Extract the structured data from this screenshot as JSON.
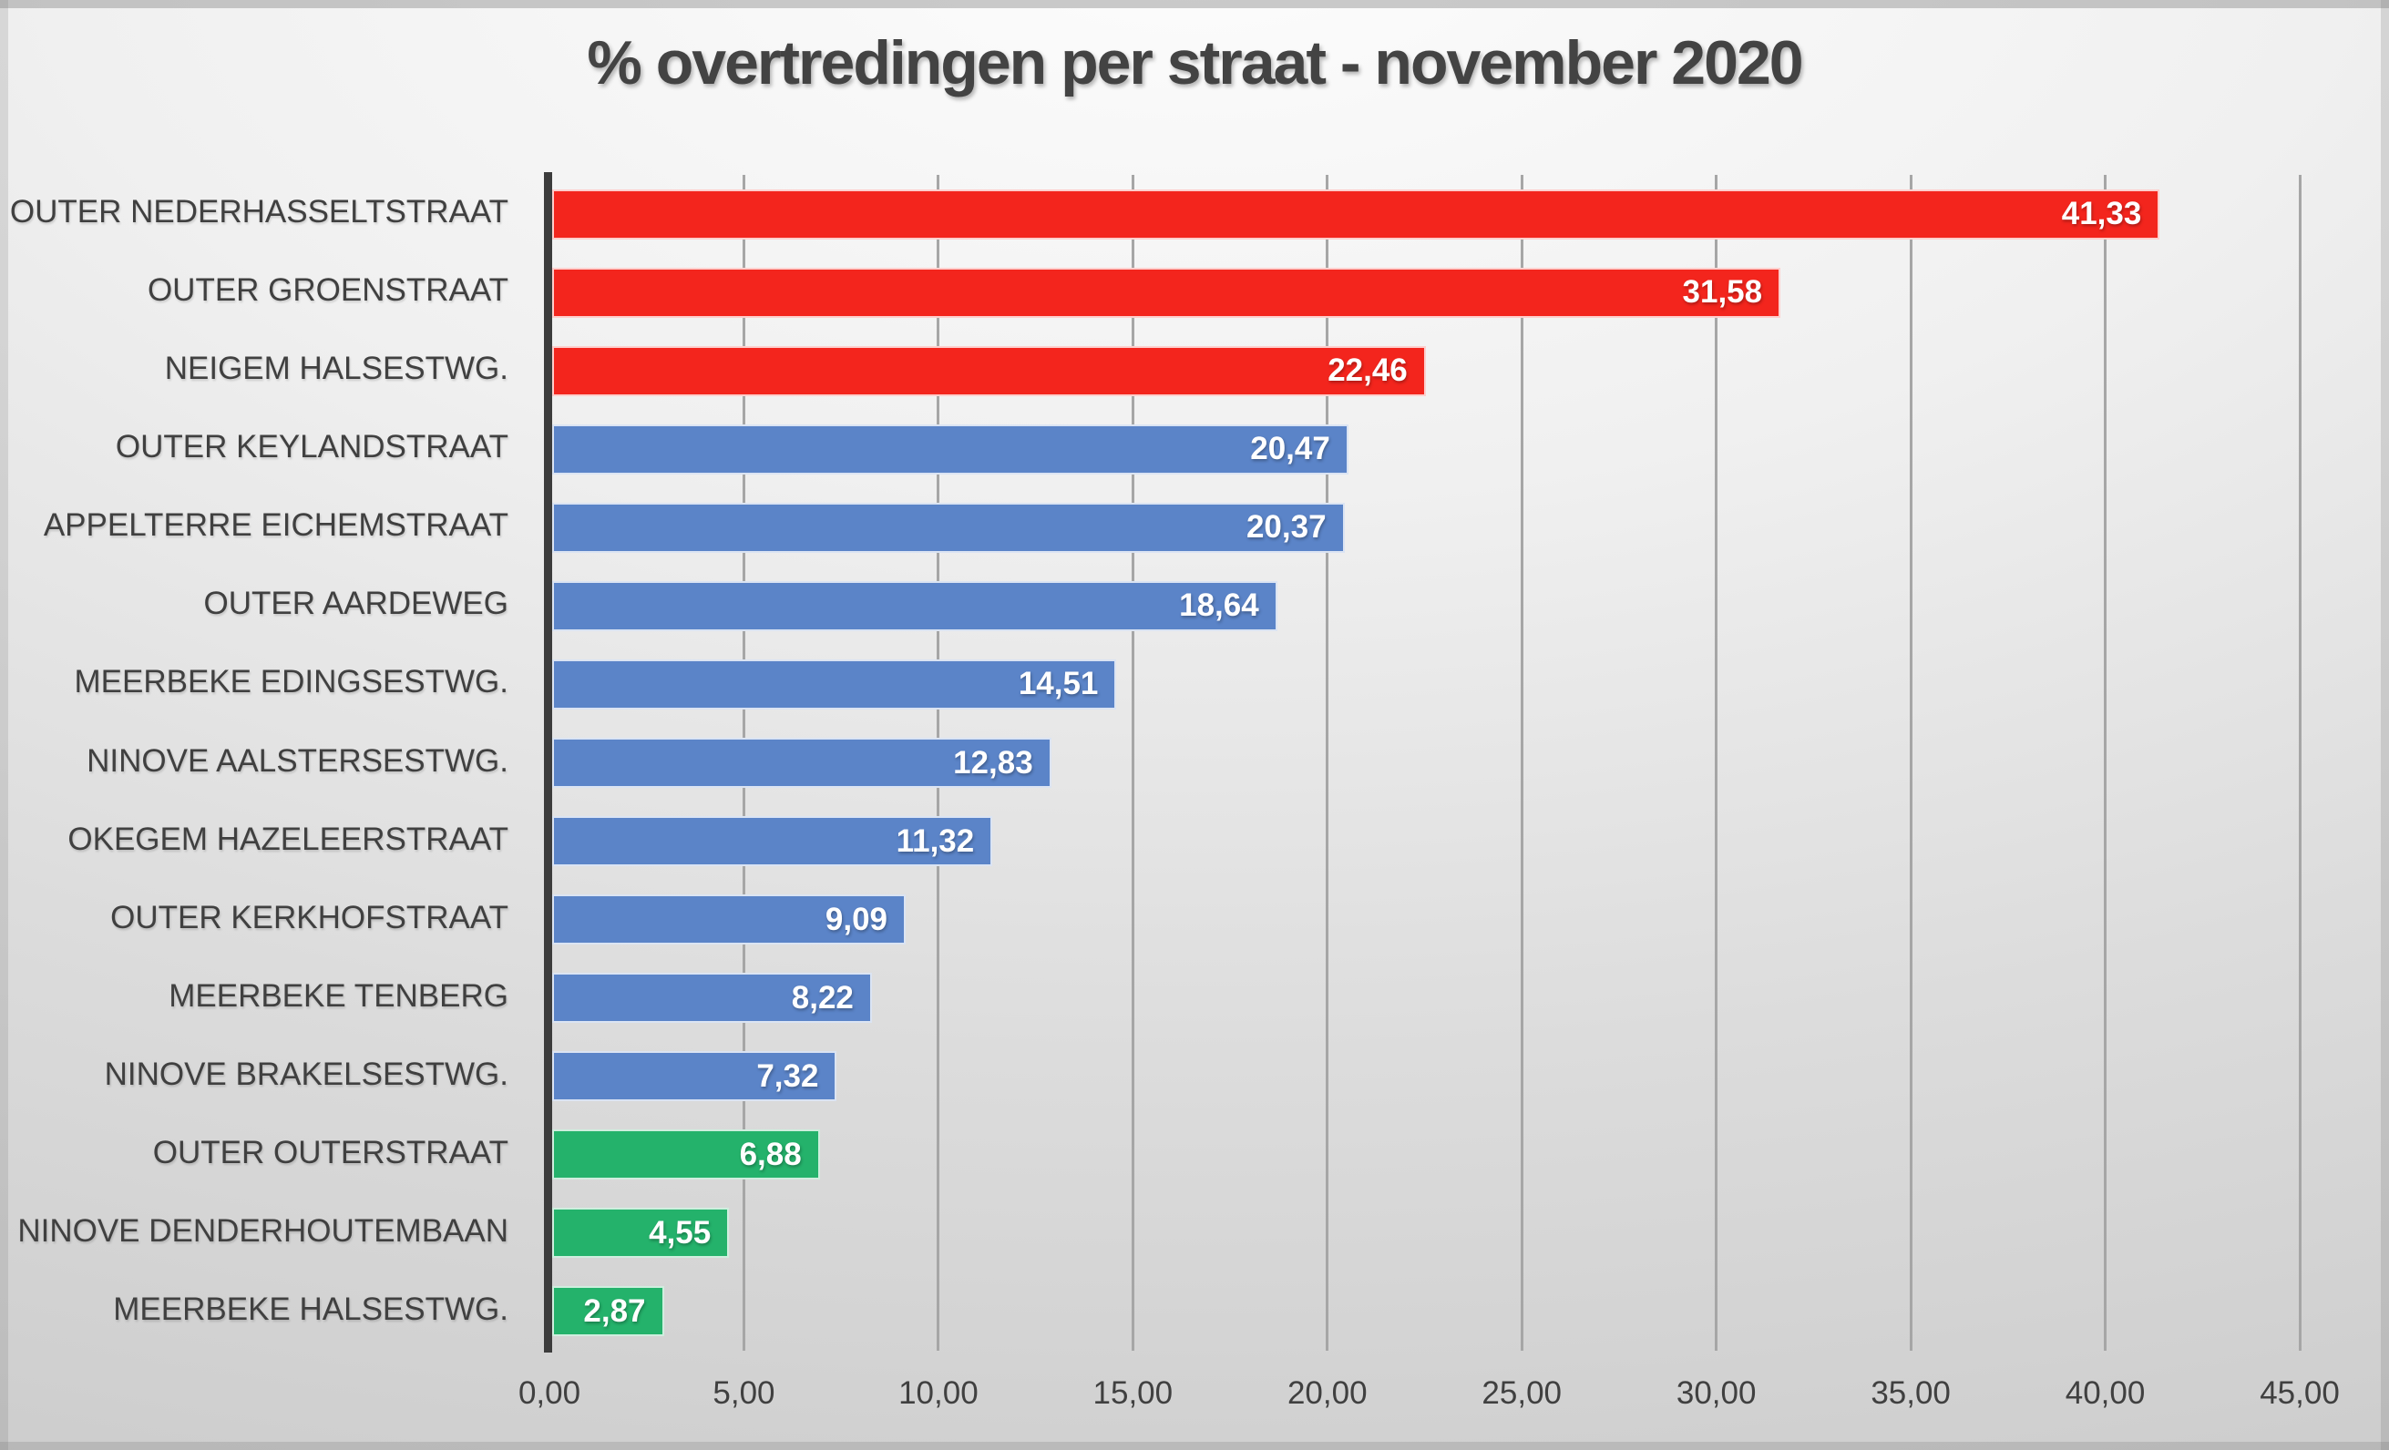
{
  "title": "% overtredingen per straat - november 2020",
  "colors": {
    "red": "#f3251d",
    "blue": "#5b84c8",
    "green": "#24b26b",
    "text": "#404040",
    "grid": "#a6a6a6",
    "axis": "#3c3c3c",
    "value_text": "#ffffff"
  },
  "chart_data": {
    "type": "bar",
    "orientation": "horizontal",
    "title": "% overtredingen per straat - november 2020",
    "categories": [
      "OUTER NEDERHASSELTSTRAAT",
      "OUTER GROENSTRAAT",
      "NEIGEM HALSESTWG.",
      "OUTER KEYLANDSTRAAT",
      "APPELTERRE EICHEMSTRAAT",
      "OUTER AARDEWEG",
      "MEERBEKE EDINGSESTWG.",
      "NINOVE AALSTERSESTWG.",
      "OKEGEM HAZELEERSTRAAT",
      "OUTER KERKHOFSTRAAT",
      "MEERBEKE TENBERG",
      "NINOVE BRAKELSESTWG.",
      "OUTER OUTERSTRAAT",
      "NINOVE DENDERHOUTEMBAAN",
      "MEERBEKE HALSESTWG."
    ],
    "values": [
      41.33,
      31.58,
      22.46,
      20.47,
      20.37,
      18.64,
      14.51,
      12.83,
      11.32,
      9.09,
      8.22,
      7.32,
      6.88,
      4.55,
      2.87
    ],
    "value_labels": [
      "41,33",
      "31,58",
      "22,46",
      "20,47",
      "20,37",
      "18,64",
      "14,51",
      "12,83",
      "11,32",
      "9,09",
      "8,22",
      "7,32",
      "6,88",
      "4,55",
      "2,87"
    ],
    "bar_colors": [
      "red",
      "red",
      "red",
      "blue",
      "blue",
      "blue",
      "blue",
      "blue",
      "blue",
      "blue",
      "blue",
      "blue",
      "green",
      "green",
      "green"
    ],
    "xlabel": "",
    "ylabel": "",
    "xlim": [
      0,
      45
    ],
    "x_ticks": [
      "0,00",
      "5,00",
      "10,00",
      "15,00",
      "20,00",
      "25,00",
      "30,00",
      "35,00",
      "40,00",
      "45,00"
    ],
    "grid": true,
    "legend": false
  }
}
